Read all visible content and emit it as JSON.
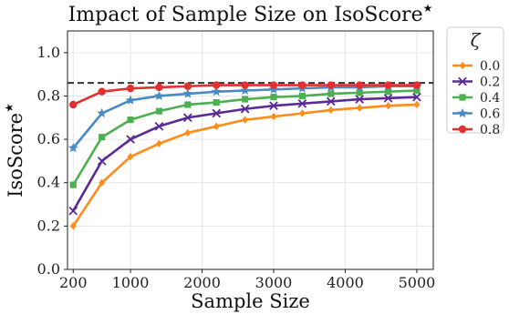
{
  "chart_data": {
    "type": "line",
    "title": "Impact of Sample Size on IsoScore",
    "title_superscript": "★",
    "xlabel": "Sample Size",
    "ylabel": "IsoScore",
    "ylabel_superscript": "★",
    "xlim": [
      120,
      5230
    ],
    "ylim": [
      0.0,
      1.1
    ],
    "xticks": [
      200,
      1000,
      2000,
      3000,
      4000,
      5000
    ],
    "xtick_labels": [
      "200",
      "1000",
      "2000",
      "3000",
      "4000",
      "5000"
    ],
    "yticks": [
      0.0,
      0.2,
      0.4,
      0.6,
      0.8,
      1.0
    ],
    "ytick_labels": [
      "0.0",
      "0.2",
      "0.4",
      "0.6",
      "0.8",
      "1.0"
    ],
    "grid": true,
    "reference_line": {
      "y": 0.86,
      "style": "dashed",
      "color": "#333333"
    },
    "legend": {
      "title": "ζ",
      "placement": "outside-right"
    },
    "x": [
      200,
      600,
      1000,
      1400,
      1800,
      2200,
      2600,
      3000,
      3400,
      3800,
      4200,
      4600,
      5000
    ],
    "series": [
      {
        "name": "0.0",
        "color": "#ff8c1a",
        "marker": "diamond",
        "values": [
          0.2,
          0.4,
          0.52,
          0.58,
          0.63,
          0.66,
          0.69,
          0.705,
          0.72,
          0.735,
          0.745,
          0.755,
          0.76
        ]
      },
      {
        "name": "0.2",
        "color": "#5b2a96",
        "marker": "x",
        "values": [
          0.27,
          0.5,
          0.6,
          0.66,
          0.7,
          0.72,
          0.74,
          0.755,
          0.765,
          0.775,
          0.785,
          0.79,
          0.795
        ]
      },
      {
        "name": "0.4",
        "color": "#4caf50",
        "marker": "square",
        "values": [
          0.39,
          0.61,
          0.69,
          0.73,
          0.76,
          0.77,
          0.785,
          0.795,
          0.8,
          0.81,
          0.815,
          0.82,
          0.825
        ]
      },
      {
        "name": "0.6",
        "color": "#4a8ac4",
        "marker": "star",
        "values": [
          0.56,
          0.72,
          0.78,
          0.8,
          0.81,
          0.82,
          0.825,
          0.83,
          0.835,
          0.84,
          0.84,
          0.845,
          0.845
        ]
      },
      {
        "name": "0.8",
        "color": "#e03030",
        "marker": "circle",
        "values": [
          0.76,
          0.82,
          0.835,
          0.84,
          0.845,
          0.85,
          0.85,
          0.85,
          0.85,
          0.85,
          0.85,
          0.85,
          0.85
        ]
      }
    ]
  }
}
